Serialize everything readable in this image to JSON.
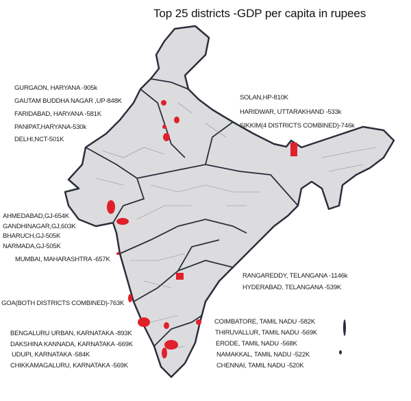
{
  "title": "Top 25 districts -GDP per capita in rupees",
  "colors": {
    "land": "#dcdcde",
    "border": "#2a2e3a",
    "highlight": "#e0202a"
  },
  "labels_left_north": [
    "GURGAON, HARYANA -905k",
    "GAUTAM BUDDHA NAGAR ,UP-848K",
    "FARIDABAD, HARYANA -581K",
    "PANIPAT,HARYANA-530k",
    "DELHI,NCT-501K"
  ],
  "labels_right_north": [
    "SOLAN,HP-810K",
    "HARIDWAR, UTTARAKHAND -533k",
    "SIKKIM(4 DISTRICTS COMBINED)-746k"
  ],
  "labels_gujarat": [
    "AHMEDABAD,GJ-654K",
    "GANDHINAGAR,GJ,603K",
    "BHARUCH,GJ-505K",
    "NARMADA,GJ-505K"
  ],
  "label_mumbai": "MUMBAI, MAHARASHTRA -657K",
  "labels_telangana": [
    "RANGAREDDY, TELANGANA -1146k",
    "HYDERABAD, TELANGANA -539K"
  ],
  "label_goa": "GOA(BOTH DISTRICTS COMBINED)-763K",
  "labels_karnataka": [
    "BENGALURU URBAN, KARNATAKA -893K",
    "DAKSHINA KANNADA, KARNATAKA -669K",
    "UDUPI, KARNATAKA -584K",
    "CHIKKAMAGALURU, KARNATAKA -569K"
  ],
  "labels_tamilnadu": [
    "COIMBATORE, TAMIL NADU -582K",
    "THIRUVALLUR, TAMIL NADU -569K",
    "ERODE, TAMIL NADU -568K",
    "NAMAKKAL, TAMIL NADU -522K",
    "CHENNAI, TAMIL NADU -520K"
  ]
}
